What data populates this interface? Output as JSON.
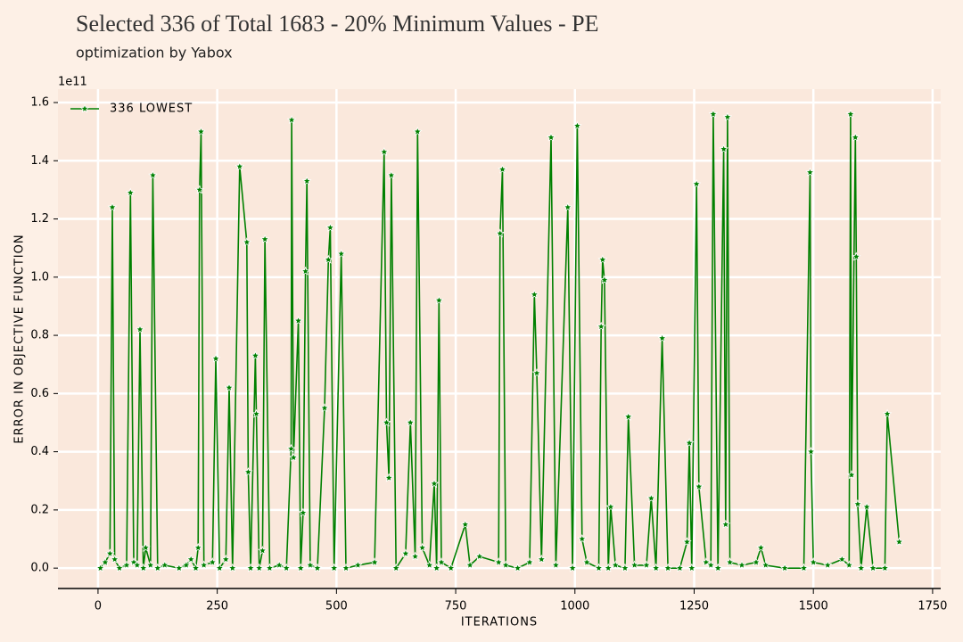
{
  "chart_data": {
    "type": "line",
    "title": "Selected 336 of Total 1683  - 20% Minimum Values - PE",
    "subtitle": "optimization by Yabox",
    "x_label": "ITERATIONS",
    "y_label": "ERROR IN OBJECTIVE FUNCTION",
    "y_offset_label": "1e11",
    "legend_position": "upper left",
    "grid": true,
    "xlim": [
      -84,
      1767
    ],
    "ylim": [
      -0.07,
      1.646
    ],
    "xticks": [
      0,
      250,
      500,
      750,
      1000,
      1250,
      1500,
      1750
    ],
    "yticks": [
      {
        "value": 0,
        "label": "0.0"
      },
      0.2,
      0.4,
      0.6,
      0.8,
      {
        "value": 1,
        "label": "1.0"
      },
      1.2,
      1.4,
      1.6
    ],
    "x": [
      5,
      15,
      25,
      30,
      35,
      45,
      60,
      68,
      75,
      82,
      88,
      95,
      100,
      110,
      115,
      125,
      140,
      170,
      185,
      195,
      205,
      210,
      213,
      216,
      222,
      240,
      247,
      255,
      268,
      275,
      282,
      297,
      312,
      315,
      320,
      330,
      332,
      338,
      345,
      350,
      360,
      380,
      395,
      405,
      406,
      410,
      420,
      425,
      430,
      435,
      438,
      445,
      460,
      475,
      483,
      487,
      495,
      510,
      520,
      545,
      580,
      600,
      605,
      610,
      615,
      625,
      645,
      655,
      665,
      670,
      680,
      695,
      705,
      710,
      715,
      720,
      740,
      770,
      780,
      800,
      840,
      843,
      848,
      855,
      880,
      905,
      915,
      920,
      930,
      950,
      960,
      985,
      995,
      1005,
      1015,
      1025,
      1050,
      1055,
      1058,
      1062,
      1070,
      1075,
      1085,
      1105,
      1112,
      1125,
      1150,
      1160,
      1170,
      1183,
      1195,
      1220,
      1235,
      1240,
      1245,
      1255,
      1260,
      1275,
      1285,
      1290,
      1300,
      1312,
      1316,
      1320,
      1325,
      1350,
      1380,
      1390,
      1400,
      1440,
      1480,
      1493,
      1495,
      1500,
      1530,
      1560,
      1575,
      1578,
      1580,
      1588,
      1590,
      1593,
      1600,
      1612,
      1625,
      1650,
      1655,
      1680
    ],
    "series": [
      {
        "name": "336 LOWEST",
        "color": "#008000",
        "values": [
          0.0,
          0.02,
          0.05,
          1.24,
          0.03,
          0.0,
          0.01,
          1.29,
          0.02,
          0.01,
          0.82,
          0.0,
          0.07,
          0.01,
          1.35,
          0.0,
          0.01,
          0.0,
          0.01,
          0.03,
          0.0,
          0.07,
          1.3,
          1.5,
          0.01,
          0.02,
          0.72,
          0.0,
          0.03,
          0.62,
          0.0,
          1.38,
          1.12,
          0.33,
          0.0,
          0.73,
          0.53,
          0.0,
          0.06,
          1.13,
          0.0,
          0.01,
          0.0,
          0.41,
          1.54,
          0.38,
          0.85,
          0.0,
          0.19,
          1.02,
          1.33,
          0.01,
          0.0,
          0.55,
          1.06,
          1.17,
          0.0,
          1.08,
          0.0,
          0.01,
          0.02,
          1.43,
          0.5,
          0.31,
          1.35,
          0.0,
          0.05,
          0.5,
          0.04,
          1.5,
          0.07,
          0.01,
          0.29,
          0.0,
          0.92,
          0.02,
          0.0,
          0.15,
          0.01,
          0.04,
          0.02,
          1.15,
          1.37,
          0.01,
          0.0,
          0.02,
          0.94,
          0.67,
          0.03,
          1.48,
          0.01,
          1.24,
          0.0,
          1.52,
          0.1,
          0.02,
          0.0,
          0.83,
          1.06,
          0.99,
          0.0,
          0.21,
          0.01,
          0.0,
          0.52,
          0.01,
          0.01,
          0.24,
          0.0,
          0.79,
          0.0,
          0.0,
          0.09,
          0.43,
          0.0,
          1.32,
          0.28,
          0.02,
          0.01,
          1.56,
          0.0,
          1.44,
          0.15,
          1.55,
          0.02,
          0.01,
          0.02,
          0.07,
          0.01,
          0.0,
          0.0,
          1.36,
          0.4,
          0.02,
          0.01,
          0.03,
          0.01,
          1.56,
          0.32,
          1.48,
          1.07,
          0.22,
          0.0,
          0.21,
          0.0,
          0.0,
          0.53,
          0.09
        ]
      }
    ]
  }
}
